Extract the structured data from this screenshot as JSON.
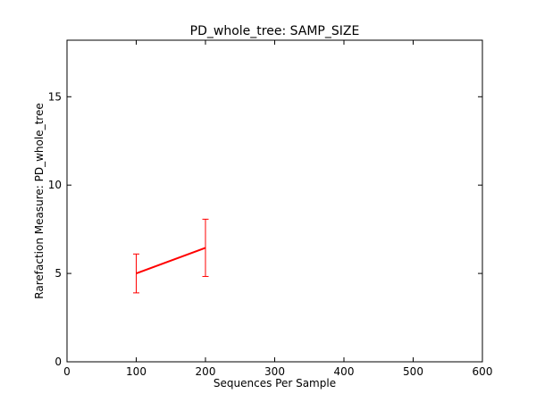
{
  "chart_data": {
    "type": "line",
    "title": "PD_whole_tree: SAMP_SIZE",
    "xlabel": "Sequences Per Sample",
    "ylabel": "Rarefaction Measure: PD_whole_tree",
    "xlim": [
      0,
      600
    ],
    "ylim": [
      0,
      18.2
    ],
    "xticks": [
      0,
      100,
      200,
      300,
      400,
      500,
      600
    ],
    "yticks": [
      0,
      5,
      10,
      15
    ],
    "grid": false,
    "series": [
      {
        "color": "#ff0000",
        "points": [
          {
            "x": 100,
            "y": 5.0,
            "err": 1.1
          },
          {
            "x": 200,
            "y": 6.45,
            "err": 1.62
          }
        ]
      }
    ]
  }
}
